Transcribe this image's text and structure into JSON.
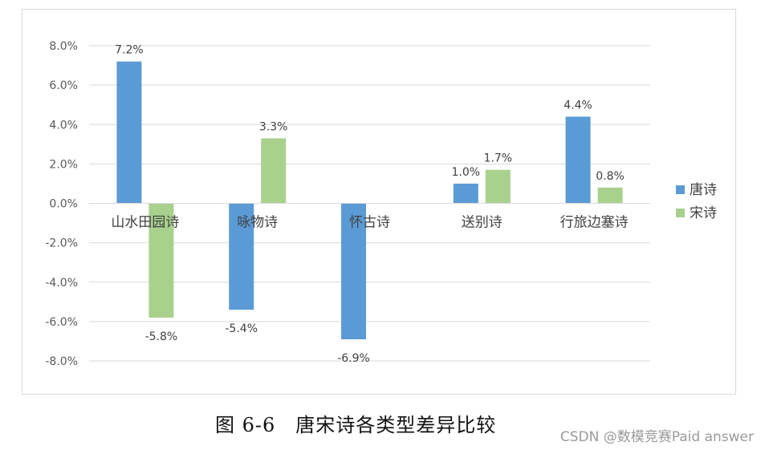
{
  "chart_data": {
    "type": "bar",
    "categories": [
      "山水田园诗",
      "咏物诗",
      "怀古诗",
      "送别诗",
      "行旅边塞诗"
    ],
    "series": [
      {
        "name": "唐诗",
        "color": "#5b9bd5",
        "values": [
          7.2,
          -5.4,
          -6.9,
          1.0,
          4.4
        ]
      },
      {
        "name": "宋诗",
        "color": "#a9d18e",
        "values": [
          -5.8,
          3.3,
          null,
          1.7,
          0.8
        ]
      }
    ],
    "data_labels": [
      [
        "7.2%",
        "-5.4%",
        "-6.9%",
        "1.0%",
        "4.4%"
      ],
      [
        "-5.8%",
        "3.3%",
        "",
        "1.7%",
        "0.8%"
      ]
    ],
    "y_ticks": [
      8,
      6,
      4,
      2,
      0,
      -2,
      -4,
      -6,
      -8
    ],
    "y_tick_labels": [
      "8.0%",
      "6.0%",
      "4.0%",
      "2.0%",
      "0.0%",
      "-2.0%",
      "-4.0%",
      "-6.0%",
      "-8.0%"
    ],
    "ylim": [
      -8,
      8
    ],
    "grid": true,
    "legend_position": "right"
  },
  "caption": "图 6-6　唐宋诗各类型差异比较",
  "watermark": "CSDN @数模竞赛Paid answer"
}
